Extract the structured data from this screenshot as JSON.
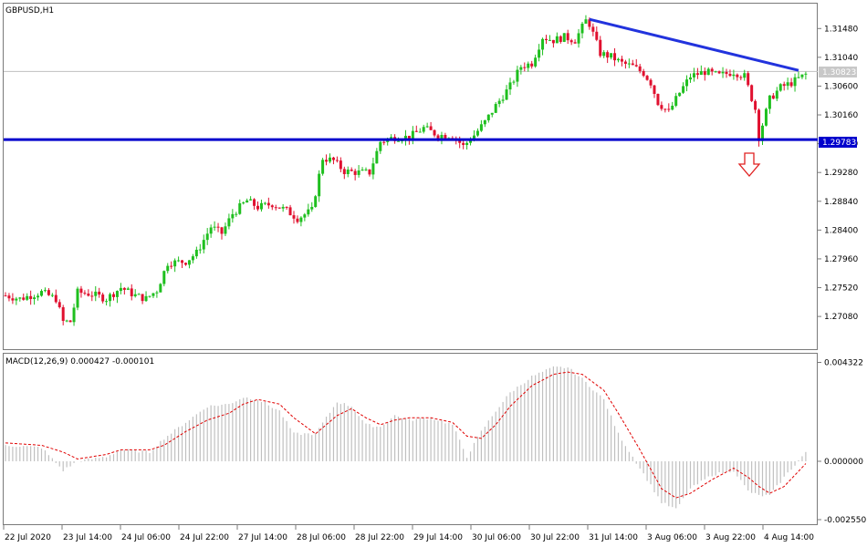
{
  "chart_data": [
    {
      "type": "candlestick",
      "title": "GBPUSD,H1",
      "ylim": [
        1.2658,
        1.3186
      ],
      "yticks": [
        "1.31480",
        "1.31040",
        "1.30600",
        "1.30160",
        "1.29720",
        "1.29280",
        "1.28840",
        "1.28400",
        "1.27960",
        "1.27520",
        "1.27080"
      ],
      "xticks": [
        "22 Jul 2020",
        "23 Jul 14:00",
        "24 Jul 06:00",
        "24 Jul 22:00",
        "27 Jul 14:00",
        "28 Jul 06:00",
        "28 Jul 22:00",
        "29 Jul 14:00",
        "30 Jul 06:00",
        "30 Jul 22:00",
        "31 Jul 14:00",
        "3 Aug 06:00",
        "3 Aug 22:00",
        "4 Aug 14:00"
      ],
      "price_keypoints": [
        [
          0,
          1.274
        ],
        [
          4,
          1.2735
        ],
        [
          10,
          1.2745
        ],
        [
          14,
          1.2735
        ],
        [
          16,
          1.27
        ],
        [
          18,
          1.27
        ],
        [
          20,
          1.2745
        ],
        [
          24,
          1.2742
        ],
        [
          28,
          1.2735
        ],
        [
          32,
          1.2752
        ],
        [
          36,
          1.274
        ],
        [
          39,
          1.2735
        ],
        [
          42,
          1.2748
        ],
        [
          45,
          1.279
        ],
        [
          50,
          1.2792
        ],
        [
          53,
          1.2805
        ],
        [
          57,
          1.2845
        ],
        [
          60,
          1.2835
        ],
        [
          63,
          1.2865
        ],
        [
          67,
          1.2885
        ],
        [
          70,
          1.2875
        ],
        [
          74,
          1.288
        ],
        [
          78,
          1.287
        ],
        [
          81,
          1.2858
        ],
        [
          85,
          1.287
        ],
        [
          88,
          1.295
        ],
        [
          91,
          1.2946
        ],
        [
          94,
          1.293
        ],
        [
          98,
          1.2928
        ],
        [
          101,
          1.2928
        ],
        [
          104,
          1.2975
        ],
        [
          108,
          1.2982
        ],
        [
          112,
          1.2982
        ],
        [
          116,
          1.2996
        ],
        [
          120,
          1.2985
        ],
        [
          124,
          1.2985
        ],
        [
          127,
          1.2968
        ],
        [
          130,
          1.2985
        ],
        [
          133,
          1.3005
        ],
        [
          136,
          1.303
        ],
        [
          140,
          1.306
        ],
        [
          143,
          1.309
        ],
        [
          146,
          1.3095
        ],
        [
          149,
          1.3135
        ],
        [
          152,
          1.313
        ],
        [
          155,
          1.3135
        ],
        [
          158,
          1.313
        ],
        [
          161,
          1.316
        ],
        [
          162,
          1.3155
        ],
        [
          165,
          1.311
        ],
        [
          168,
          1.3105
        ],
        [
          171,
          1.3095
        ],
        [
          174,
          1.309
        ],
        [
          177,
          1.308
        ],
        [
          179,
          1.3065
        ],
        [
          181,
          1.3035
        ],
        [
          184,
          1.302
        ],
        [
          187,
          1.305
        ],
        [
          190,
          1.3075
        ],
        [
          194,
          1.3082
        ],
        [
          198,
          1.3076
        ],
        [
          202,
          1.3082
        ],
        [
          205,
          1.3075
        ],
        [
          208,
          1.3025
        ],
        [
          209,
          1.2982
        ],
        [
          212,
          1.304
        ],
        [
          215,
          1.3058
        ],
        [
          218,
          1.3065
        ],
        [
          222,
          1.3078
        ]
      ],
      "last_price": "1.30823",
      "support_level": "1.29783",
      "resistance_line": [
        [
          162,
          1.3162
        ],
        [
          220,
          1.3084
        ]
      ]
    },
    {
      "type": "bar",
      "title": "MACD(12,26,9) 0.000427 -0.000101",
      "ylim": [
        -0.00275,
        0.0047
      ],
      "yticks": [
        "0.004322",
        "0.000000",
        "-0.002550"
      ],
      "macd_keypoints": [
        [
          0,
          0.0007
        ],
        [
          10,
          0.0006
        ],
        [
          16,
          -0.0004
        ],
        [
          20,
          0.0
        ],
        [
          28,
          0.0002
        ],
        [
          32,
          0.0005
        ],
        [
          40,
          0.0004
        ],
        [
          44,
          0.001
        ],
        [
          50,
          0.0017
        ],
        [
          56,
          0.0024
        ],
        [
          62,
          0.0025
        ],
        [
          66,
          0.0028
        ],
        [
          70,
          0.0027
        ],
        [
          76,
          0.0022
        ],
        [
          80,
          0.0012
        ],
        [
          86,
          0.0012
        ],
        [
          92,
          0.0026
        ],
        [
          96,
          0.0024
        ],
        [
          100,
          0.0016
        ],
        [
          104,
          0.0015
        ],
        [
          108,
          0.002
        ],
        [
          112,
          0.0018
        ],
        [
          118,
          0.0019
        ],
        [
          124,
          0.0016
        ],
        [
          128,
          0.0002
        ],
        [
          132,
          0.0013
        ],
        [
          136,
          0.0022
        ],
        [
          140,
          0.003
        ],
        [
          146,
          0.0037
        ],
        [
          152,
          0.0041
        ],
        [
          156,
          0.0041
        ],
        [
          160,
          0.0036
        ],
        [
          166,
          0.0027
        ],
        [
          170,
          0.0012
        ],
        [
          176,
          -0.0003
        ],
        [
          182,
          -0.0018
        ],
        [
          186,
          -0.0021
        ],
        [
          190,
          -0.0012
        ],
        [
          196,
          -0.0006
        ],
        [
          202,
          -0.0004
        ],
        [
          206,
          -0.0013
        ],
        [
          209,
          -0.0015
        ],
        [
          212,
          -0.0015
        ],
        [
          216,
          -0.0007
        ],
        [
          222,
          0.0004
        ]
      ],
      "signal_keypoints": [
        [
          0,
          0.0008
        ],
        [
          10,
          0.0007
        ],
        [
          16,
          0.0004
        ],
        [
          20,
          0.0001
        ],
        [
          28,
          0.0003
        ],
        [
          32,
          0.0005
        ],
        [
          40,
          0.0005
        ],
        [
          44,
          0.0007
        ],
        [
          50,
          0.0013
        ],
        [
          56,
          0.0018
        ],
        [
          62,
          0.0021
        ],
        [
          66,
          0.0025
        ],
        [
          70,
          0.0027
        ],
        [
          76,
          0.0025
        ],
        [
          80,
          0.0019
        ],
        [
          86,
          0.0012
        ],
        [
          92,
          0.002
        ],
        [
          96,
          0.0023
        ],
        [
          100,
          0.0019
        ],
        [
          104,
          0.0016
        ],
        [
          108,
          0.0018
        ],
        [
          112,
          0.0019
        ],
        [
          118,
          0.0019
        ],
        [
          124,
          0.0017
        ],
        [
          128,
          0.0011
        ],
        [
          132,
          0.001
        ],
        [
          136,
          0.0016
        ],
        [
          140,
          0.0024
        ],
        [
          146,
          0.0033
        ],
        [
          152,
          0.0038
        ],
        [
          156,
          0.0039
        ],
        [
          160,
          0.0038
        ],
        [
          166,
          0.0031
        ],
        [
          170,
          0.0021
        ],
        [
          176,
          0.0005
        ],
        [
          182,
          -0.0012
        ],
        [
          186,
          -0.0016
        ],
        [
          190,
          -0.0014
        ],
        [
          196,
          -0.0008
        ],
        [
          202,
          -0.0003
        ],
        [
          206,
          -0.0007
        ],
        [
          209,
          -0.0011
        ],
        [
          212,
          -0.0014
        ],
        [
          216,
          -0.0011
        ],
        [
          222,
          -0.0001
        ]
      ]
    }
  ],
  "colors": {
    "bull": "#1fbf1f",
    "bear": "#e0102f",
    "level": "#0000cc",
    "trend": "#2233dd",
    "hist": "#c0c0c0",
    "signal": "#e00000",
    "frame": "#7a7a7a",
    "arrow": "#e02020"
  }
}
